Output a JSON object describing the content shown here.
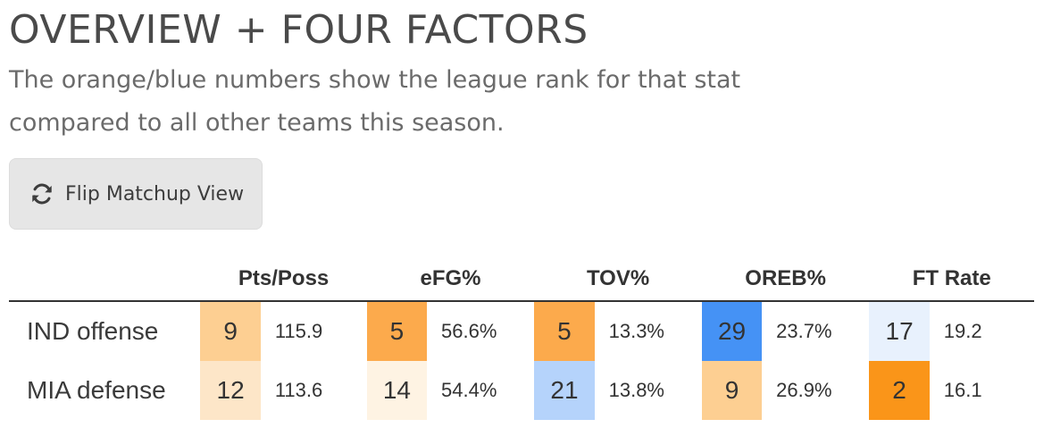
{
  "header": {
    "title": "OVERVIEW + FOUR FACTORS",
    "subtitle_line1": "The orange/blue numbers show the league rank for that stat",
    "subtitle_line2": "compared to all other teams this season."
  },
  "toolbar": {
    "flip_label": "Flip Matchup View",
    "flip_icon": "refresh-icon"
  },
  "table": {
    "columns": [
      "Pts/Poss",
      "eFG%",
      "TOV%",
      "OREB%",
      "FT Rate"
    ],
    "rows": [
      {
        "team": "IND offense",
        "cells": [
          {
            "rank": "9",
            "value": "115.9",
            "color": "#fdcf92"
          },
          {
            "rank": "5",
            "value": "56.6%",
            "color": "#fcaa4c"
          },
          {
            "rank": "5",
            "value": "13.3%",
            "color": "#fcaa4c"
          },
          {
            "rank": "29",
            "value": "23.7%",
            "color": "#4592f5"
          },
          {
            "rank": "17",
            "value": "19.2",
            "color": "#e8f1fd"
          }
        ]
      },
      {
        "team": "MIA defense",
        "cells": [
          {
            "rank": "12",
            "value": "113.6",
            "color": "#fde6c8"
          },
          {
            "rank": "14",
            "value": "54.4%",
            "color": "#fef3e3"
          },
          {
            "rank": "21",
            "value": "13.8%",
            "color": "#b5d3fb"
          },
          {
            "rank": "9",
            "value": "26.9%",
            "color": "#fdcf92"
          },
          {
            "rank": "2",
            "value": "16.1",
            "color": "#fa9519"
          }
        ]
      }
    ]
  }
}
